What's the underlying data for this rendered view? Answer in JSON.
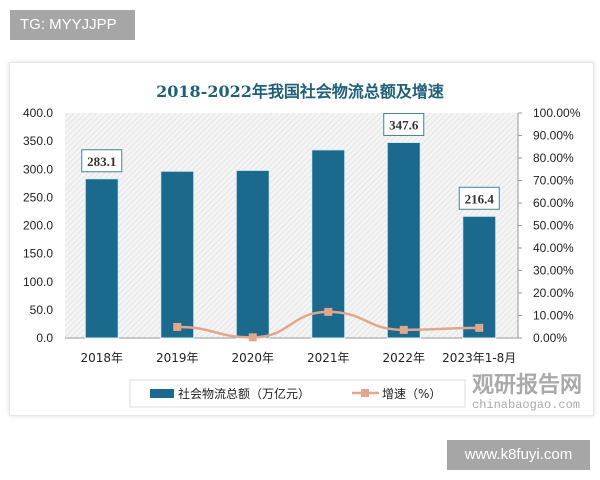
{
  "overlay": {
    "top_left_tag": "TG: MYYJJPP",
    "bottom_right_tag": "www.k8fuyi.com"
  },
  "watermark": {
    "cn": "观研报告网",
    "en": "chinabaogao.com"
  },
  "chart_data": {
    "type": "bar+line",
    "title": "2018-2022年我国社会物流总额及增速",
    "categories": [
      "2018年",
      "2019年",
      "2020年",
      "2021年",
      "2022年",
      "2023年1-8月"
    ],
    "series": [
      {
        "name": "社会物流总额（万亿元）",
        "type": "bar",
        "axis": "left",
        "color": "#1b6a8e",
        "values": [
          283.1,
          296.5,
          298.0,
          334.5,
          347.6,
          216.4
        ],
        "data_labels": [
          "283.1",
          null,
          null,
          null,
          "347.6",
          "216.4"
        ]
      },
      {
        "name": "增速（%）",
        "type": "line",
        "axis": "right",
        "color": "#e0a78c",
        "values": [
          null,
          4.9,
          0.3,
          11.6,
          3.6,
          4.5
        ]
      }
    ],
    "left_axis": {
      "ylim": [
        0,
        400
      ],
      "ticks": [
        "0.0",
        "50.0",
        "100.0",
        "150.0",
        "200.0",
        "250.0",
        "300.0",
        "350.0",
        "400.0"
      ]
    },
    "right_axis": {
      "ylim": [
        0,
        100
      ],
      "ticks": [
        "0.00%",
        "10.00%",
        "20.00%",
        "30.00%",
        "40.00%",
        "50.00%",
        "60.00%",
        "70.00%",
        "80.00%",
        "90.00%",
        "100.00%"
      ]
    },
    "legend": "bottom",
    "grid": false
  }
}
